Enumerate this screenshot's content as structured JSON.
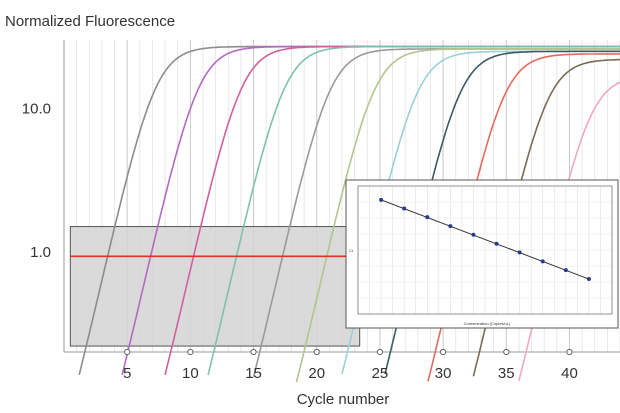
{
  "chart_data": [
    {
      "type": "line",
      "title": "",
      "ylabel": "Normalized Fluorescence",
      "xlabel": "Cycle number",
      "y_scale": "log",
      "xlim": [
        0,
        44
      ],
      "ylim": [
        0.2,
        30
      ],
      "x_ticks": [
        5,
        10,
        15,
        20,
        25,
        30,
        35,
        40
      ],
      "x_tick_labels": [
        "5",
        "10",
        "15",
        "20",
        "25",
        "30",
        "35",
        "40"
      ],
      "y_ticks": [
        1.0,
        10.0
      ],
      "y_tick_labels": [
        "1.0",
        "10.0"
      ],
      "grid": "vertical",
      "threshold": 0.93,
      "threshold_color": "#e0321e",
      "threshold_band": [
        0.22,
        1.5
      ],
      "series": [
        {
          "color": "#8c8c8c",
          "midpoint": 7.2,
          "plateau": 27
        },
        {
          "color": "#b469c2",
          "midpoint": 10.6,
          "plateau": 27
        },
        {
          "color": "#d0609e",
          "midpoint": 14.0,
          "plateau": 27
        },
        {
          "color": "#7fc0b0",
          "midpoint": 17.4,
          "plateau": 27
        },
        {
          "color": "#9a9a9a",
          "midpoint": 21.0,
          "plateau": 26
        },
        {
          "color": "#b2c58a",
          "midpoint": 24.5,
          "plateau": 26
        },
        {
          "color": "#9ad0d8",
          "midpoint": 27.9,
          "plateau": 25
        },
        {
          "color": "#3c5a66",
          "midpoint": 31.3,
          "plateau": 25
        },
        {
          "color": "#e36b5d",
          "midpoint": 34.8,
          "plateau": 24
        },
        {
          "color": "#7c6a55",
          "midpoint": 38.2,
          "plateau": 22
        },
        {
          "color": "#f0a8bd",
          "midpoint": 41.6,
          "plateau": 17
        }
      ]
    },
    {
      "type": "scatter",
      "title": "",
      "xlabel": "Concentration (Copies/uL)",
      "ylabel": "Ct",
      "trendline": true,
      "color": "#2a3a8a",
      "x": [
        1,
        2,
        3,
        4,
        5,
        6,
        7,
        8,
        9,
        10
      ],
      "y": [
        38,
        35.5,
        33,
        30.4,
        27.9,
        25.3,
        22.8,
        20.2,
        17.7,
        15.1
      ],
      "xlim": [
        0,
        11
      ],
      "ylim": [
        5,
        42
      ]
    }
  ]
}
